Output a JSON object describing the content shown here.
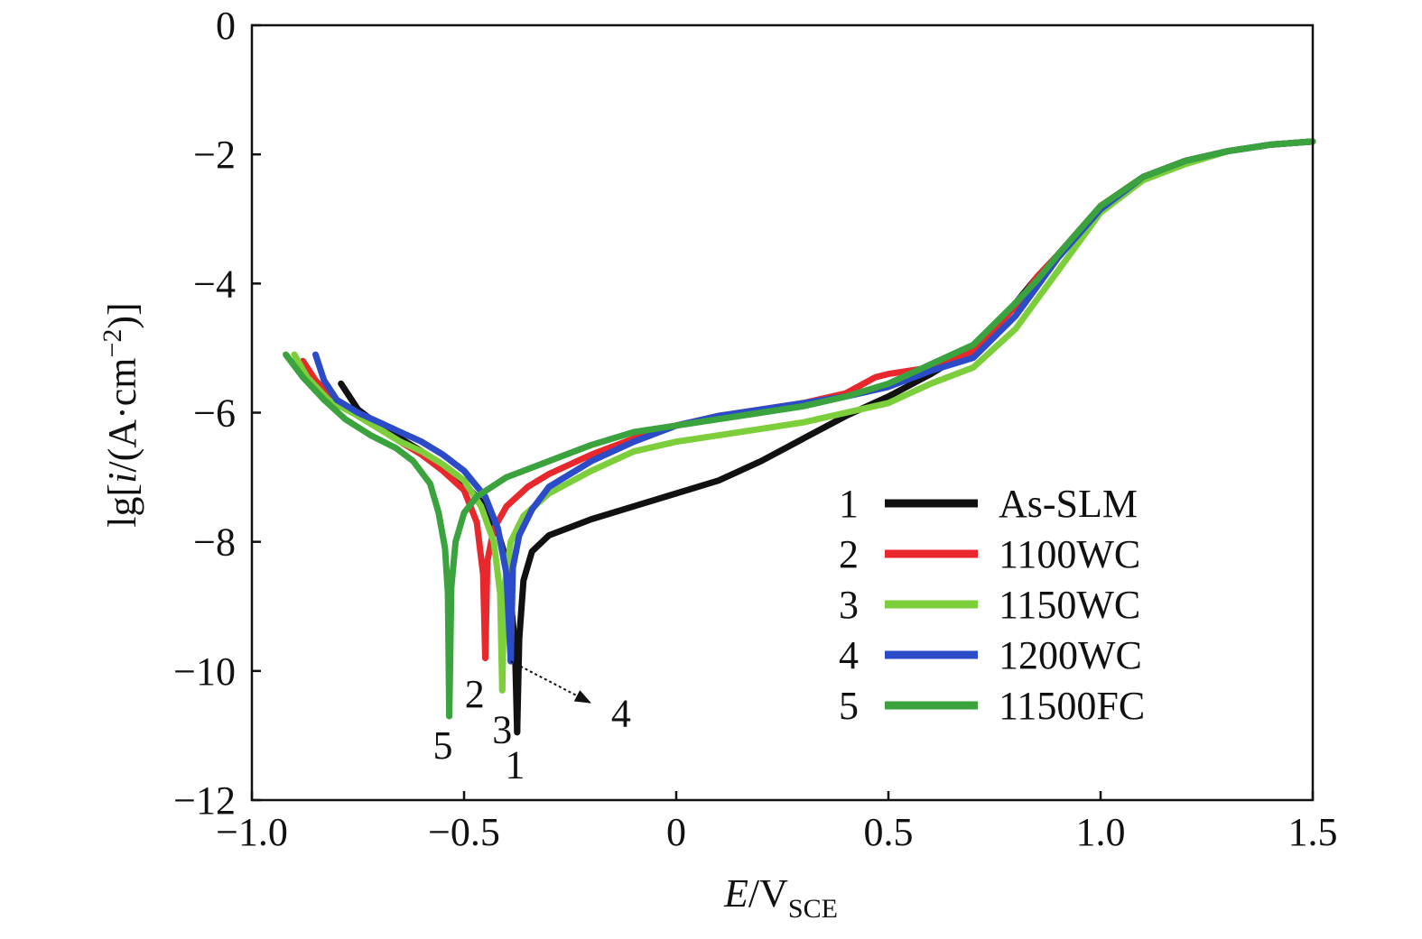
{
  "chart_data": {
    "type": "line",
    "xlabel": {
      "italic": "E",
      "main": "/V",
      "sub": "SCE"
    },
    "ylabel": {
      "pre": "lg[",
      "italic": "i",
      "post": "/(A·cm",
      "sup": "−2",
      "end": ")]"
    },
    "xlim": [
      -1.0,
      1.5
    ],
    "ylim": [
      -12,
      0
    ],
    "xticks": [
      -1.0,
      -0.5,
      0,
      0.5,
      1.0,
      1.5
    ],
    "xtick_labels": [
      "−1.0",
      "−0.5",
      "0",
      "0.5",
      "1.0",
      "1.5"
    ],
    "yticks": [
      0,
      -2,
      -4,
      -6,
      -8,
      -10,
      -12
    ],
    "ytick_labels": [
      "0",
      "−2",
      "−4",
      "−6",
      "−8",
      "−10",
      "−12"
    ],
    "grid": false,
    "legend_position": "bottom-right",
    "series": [
      {
        "id": "1",
        "name": "As-SLM",
        "color": "#111111",
        "cathodic": [
          [
            -0.79,
            -5.55
          ],
          [
            -0.75,
            -5.95
          ],
          [
            -0.7,
            -6.2
          ],
          [
            -0.65,
            -6.4
          ],
          [
            -0.6,
            -6.6
          ],
          [
            -0.55,
            -6.85
          ],
          [
            -0.5,
            -7.1
          ],
          [
            -0.45,
            -7.45
          ],
          [
            -0.42,
            -7.85
          ],
          [
            -0.4,
            -8.3
          ],
          [
            -0.39,
            -8.9
          ],
          [
            -0.38,
            -9.6
          ],
          [
            -0.375,
            -10.95
          ]
        ],
        "anodic": [
          [
            -0.375,
            -10.95
          ],
          [
            -0.37,
            -9.5
          ],
          [
            -0.36,
            -8.6
          ],
          [
            -0.34,
            -8.15
          ],
          [
            -0.3,
            -7.9
          ],
          [
            -0.2,
            -7.65
          ],
          [
            -0.1,
            -7.45
          ],
          [
            0.0,
            -7.25
          ],
          [
            0.1,
            -7.05
          ],
          [
            0.2,
            -6.75
          ],
          [
            0.3,
            -6.4
          ],
          [
            0.4,
            -6.05
          ],
          [
            0.5,
            -5.75
          ],
          [
            0.6,
            -5.4
          ],
          [
            0.7,
            -5.0
          ],
          [
            0.8,
            -4.3
          ],
          [
            0.85,
            -3.9
          ],
          [
            0.9,
            -3.55
          ],
          [
            1.0,
            -2.8
          ],
          [
            1.1,
            -2.35
          ],
          [
            1.2,
            -2.1
          ],
          [
            1.3,
            -1.95
          ],
          [
            1.4,
            -1.85
          ],
          [
            1.5,
            -1.8
          ]
        ]
      },
      {
        "id": "2",
        "name": "1100WC",
        "color": "#e8282c",
        "cathodic": [
          [
            -0.88,
            -5.2
          ],
          [
            -0.85,
            -5.5
          ],
          [
            -0.8,
            -5.85
          ],
          [
            -0.75,
            -6.05
          ],
          [
            -0.7,
            -6.25
          ],
          [
            -0.65,
            -6.45
          ],
          [
            -0.6,
            -6.65
          ],
          [
            -0.55,
            -6.9
          ],
          [
            -0.5,
            -7.2
          ],
          [
            -0.47,
            -7.7
          ],
          [
            -0.455,
            -8.5
          ],
          [
            -0.45,
            -9.8
          ]
        ],
        "anodic": [
          [
            -0.45,
            -9.8
          ],
          [
            -0.445,
            -8.3
          ],
          [
            -0.43,
            -7.8
          ],
          [
            -0.4,
            -7.45
          ],
          [
            -0.35,
            -7.15
          ],
          [
            -0.3,
            -6.95
          ],
          [
            -0.2,
            -6.65
          ],
          [
            -0.1,
            -6.4
          ],
          [
            0.0,
            -6.2
          ],
          [
            0.1,
            -6.05
          ],
          [
            0.2,
            -5.95
          ],
          [
            0.3,
            -5.85
          ],
          [
            0.4,
            -5.7
          ],
          [
            0.47,
            -5.45
          ],
          [
            0.5,
            -5.4
          ],
          [
            0.6,
            -5.3
          ],
          [
            0.7,
            -5.05
          ],
          [
            0.8,
            -4.35
          ],
          [
            0.85,
            -3.9
          ],
          [
            0.9,
            -3.55
          ],
          [
            1.0,
            -2.8
          ],
          [
            1.1,
            -2.35
          ],
          [
            1.2,
            -2.1
          ],
          [
            1.3,
            -1.95
          ],
          [
            1.4,
            -1.85
          ],
          [
            1.5,
            -1.8
          ]
        ]
      },
      {
        "id": "3",
        "name": "1150WC",
        "color": "#7ccf3a",
        "cathodic": [
          [
            -0.9,
            -5.1
          ],
          [
            -0.87,
            -5.45
          ],
          [
            -0.82,
            -5.8
          ],
          [
            -0.75,
            -6.05
          ],
          [
            -0.7,
            -6.25
          ],
          [
            -0.65,
            -6.45
          ],
          [
            -0.6,
            -6.6
          ],
          [
            -0.55,
            -6.8
          ],
          [
            -0.5,
            -7.05
          ],
          [
            -0.46,
            -7.45
          ],
          [
            -0.43,
            -8.0
          ],
          [
            -0.415,
            -8.8
          ],
          [
            -0.41,
            -10.3
          ]
        ],
        "anodic": [
          [
            -0.41,
            -10.3
          ],
          [
            -0.405,
            -8.7
          ],
          [
            -0.39,
            -8.0
          ],
          [
            -0.36,
            -7.6
          ],
          [
            -0.3,
            -7.25
          ],
          [
            -0.2,
            -6.9
          ],
          [
            -0.1,
            -6.6
          ],
          [
            0.0,
            -6.45
          ],
          [
            0.1,
            -6.35
          ],
          [
            0.2,
            -6.25
          ],
          [
            0.3,
            -6.15
          ],
          [
            0.4,
            -6.0
          ],
          [
            0.5,
            -5.85
          ],
          [
            0.6,
            -5.55
          ],
          [
            0.7,
            -5.3
          ],
          [
            0.8,
            -4.7
          ],
          [
            0.9,
            -3.8
          ],
          [
            1.0,
            -2.9
          ],
          [
            1.1,
            -2.4
          ],
          [
            1.2,
            -2.15
          ],
          [
            1.3,
            -1.95
          ],
          [
            1.4,
            -1.85
          ],
          [
            1.5,
            -1.8
          ]
        ]
      },
      {
        "id": "4",
        "name": "1200WC",
        "color": "#2c4bc8",
        "cathodic": [
          [
            -0.85,
            -5.1
          ],
          [
            -0.83,
            -5.5
          ],
          [
            -0.8,
            -5.8
          ],
          [
            -0.75,
            -6.0
          ],
          [
            -0.7,
            -6.15
          ],
          [
            -0.65,
            -6.3
          ],
          [
            -0.6,
            -6.45
          ],
          [
            -0.55,
            -6.65
          ],
          [
            -0.5,
            -6.9
          ],
          [
            -0.45,
            -7.3
          ],
          [
            -0.42,
            -7.8
          ],
          [
            -0.4,
            -8.5
          ],
          [
            -0.39,
            -9.85
          ]
        ],
        "anodic": [
          [
            -0.39,
            -9.85
          ],
          [
            -0.385,
            -8.4
          ],
          [
            -0.37,
            -7.9
          ],
          [
            -0.34,
            -7.5
          ],
          [
            -0.3,
            -7.15
          ],
          [
            -0.2,
            -6.75
          ],
          [
            -0.1,
            -6.45
          ],
          [
            0.0,
            -6.2
          ],
          [
            0.1,
            -6.05
          ],
          [
            0.2,
            -5.95
          ],
          [
            0.3,
            -5.85
          ],
          [
            0.4,
            -5.75
          ],
          [
            0.5,
            -5.6
          ],
          [
            0.6,
            -5.35
          ],
          [
            0.7,
            -5.15
          ],
          [
            0.8,
            -4.5
          ],
          [
            0.9,
            -3.6
          ],
          [
            1.0,
            -2.85
          ],
          [
            1.1,
            -2.35
          ],
          [
            1.2,
            -2.1
          ],
          [
            1.3,
            -1.95
          ],
          [
            1.4,
            -1.85
          ],
          [
            1.5,
            -1.8
          ]
        ]
      },
      {
        "id": "5",
        "name": "11500FC",
        "color": "#3aa33e",
        "cathodic": [
          [
            -0.92,
            -5.1
          ],
          [
            -0.88,
            -5.45
          ],
          [
            -0.83,
            -5.8
          ],
          [
            -0.78,
            -6.1
          ],
          [
            -0.72,
            -6.35
          ],
          [
            -0.66,
            -6.55
          ],
          [
            -0.62,
            -6.75
          ],
          [
            -0.58,
            -7.1
          ],
          [
            -0.56,
            -7.55
          ],
          [
            -0.545,
            -8.1
          ],
          [
            -0.538,
            -8.8
          ],
          [
            -0.535,
            -10.7
          ]
        ],
        "anodic": [
          [
            -0.535,
            -10.7
          ],
          [
            -0.53,
            -8.7
          ],
          [
            -0.52,
            -8.0
          ],
          [
            -0.5,
            -7.55
          ],
          [
            -0.47,
            -7.3
          ],
          [
            -0.4,
            -7.0
          ],
          [
            -0.3,
            -6.75
          ],
          [
            -0.2,
            -6.5
          ],
          [
            -0.1,
            -6.3
          ],
          [
            0.0,
            -6.2
          ],
          [
            0.1,
            -6.1
          ],
          [
            0.2,
            -6.0
          ],
          [
            0.3,
            -5.9
          ],
          [
            0.4,
            -5.75
          ],
          [
            0.5,
            -5.55
          ],
          [
            0.6,
            -5.25
          ],
          [
            0.7,
            -4.95
          ],
          [
            0.8,
            -4.3
          ],
          [
            0.85,
            -3.95
          ],
          [
            0.9,
            -3.55
          ],
          [
            1.0,
            -2.8
          ],
          [
            1.1,
            -2.35
          ],
          [
            1.2,
            -2.1
          ],
          [
            1.3,
            -1.95
          ],
          [
            1.4,
            -1.85
          ],
          [
            1.5,
            -1.8
          ]
        ]
      }
    ],
    "curve_labels": [
      {
        "text": "1",
        "x": -0.38,
        "y": -11.45
      },
      {
        "text": "2",
        "x": -0.475,
        "y": -10.35
      },
      {
        "text": "3",
        "x": -0.41,
        "y": -10.9
      },
      {
        "text": "4",
        "x": -0.13,
        "y": -10.65
      },
      {
        "text": "5",
        "x": -0.55,
        "y": -11.15
      }
    ],
    "arrow": {
      "from": [
        -0.39,
        -9.85
      ],
      "to": [
        -0.2,
        -10.5
      ]
    }
  }
}
